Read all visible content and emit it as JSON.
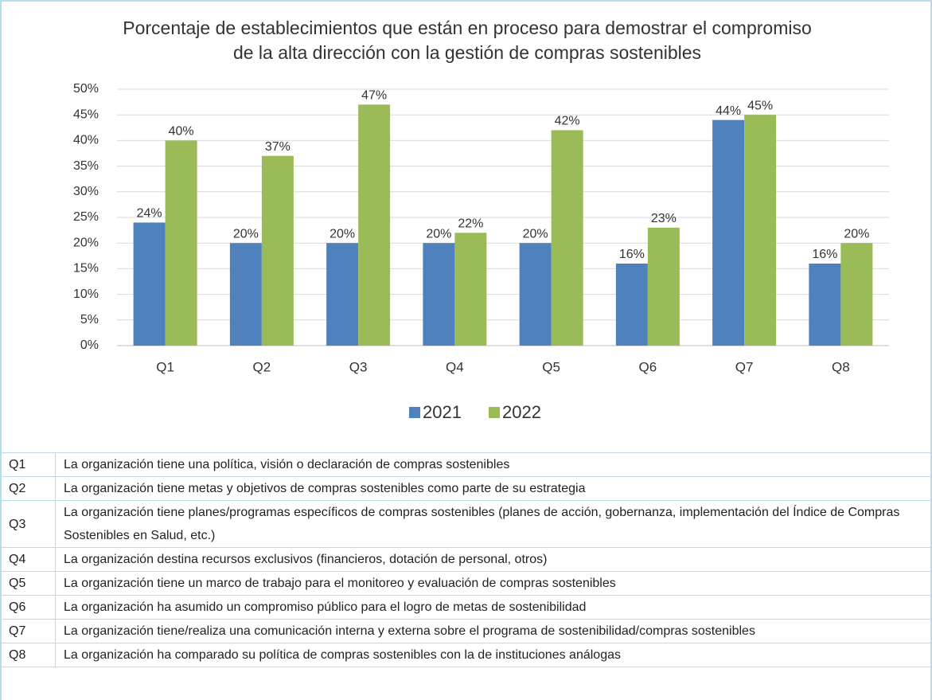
{
  "chart_data": {
    "type": "bar",
    "title": "Porcentaje de establecimientos que están en proceso para demostrar el compromiso de la alta dirección con la gestión de compras sostenibles",
    "categories": [
      "Q1",
      "Q2",
      "Q3",
      "Q4",
      "Q5",
      "Q6",
      "Q7",
      "Q8"
    ],
    "series": [
      {
        "name": "2021",
        "color": "#4f81bd",
        "values": [
          24,
          20,
          20,
          20,
          20,
          16,
          44,
          16
        ],
        "value_labels": [
          "24%",
          "20%",
          "20%",
          "20%",
          "20%",
          "16%",
          "44%",
          "16%"
        ]
      },
      {
        "name": "2022",
        "color": "#9bbb59",
        "values": [
          40,
          37,
          47,
          22,
          42,
          23,
          45,
          20
        ],
        "value_labels": [
          "40%",
          "37%",
          "47%",
          "22%",
          "42%",
          "23%",
          "45%",
          "20%"
        ]
      }
    ],
    "ylim": [
      0,
      50
    ],
    "yticks": [
      {
        "value": 0,
        "label": "0%"
      },
      {
        "value": 5,
        "label": "5%"
      },
      {
        "value": 10,
        "label": "10%"
      },
      {
        "value": 15,
        "label": "15%"
      },
      {
        "value": 20,
        "label": "20%"
      },
      {
        "value": 25,
        "label": "25%"
      },
      {
        "value": 30,
        "label": "30%"
      },
      {
        "value": 35,
        "label": "35%"
      },
      {
        "value": 40,
        "label": "40%"
      },
      {
        "value": 45,
        "label": "45%"
      },
      {
        "value": 50,
        "label": "50%"
      }
    ],
    "grid": true,
    "legend": "bottom"
  },
  "table": {
    "rows": [
      [
        "Q1",
        "La organización tiene una política, visión o declaración de compras sostenibles"
      ],
      [
        "Q2",
        "La organización tiene metas y objetivos de compras sostenibles como parte de su estrategia"
      ],
      [
        "Q3",
        "La organización tiene planes/programas específicos de compras sostenibles (planes de acción, gobernanza, implementación del Índice de Compras Sostenibles en Salud, etc.)"
      ],
      [
        "Q4",
        "La organización destina recursos exclusivos (financieros, dotación de personal, otros)"
      ],
      [
        "Q5",
        "La organización tiene un marco de trabajo para el monitoreo y evaluación de compras sostenibles"
      ],
      [
        "Q6",
        "La organización ha asumido un compromiso público para el logro de metas de sostenibilidad"
      ],
      [
        "Q7",
        "La organización tiene/realiza una comunicación interna y externa sobre el programa de sostenibilidad/compras sostenibles"
      ],
      [
        "Q8",
        "La organización ha comparado su política de compras sostenibles con la de instituciones análogas"
      ]
    ]
  }
}
